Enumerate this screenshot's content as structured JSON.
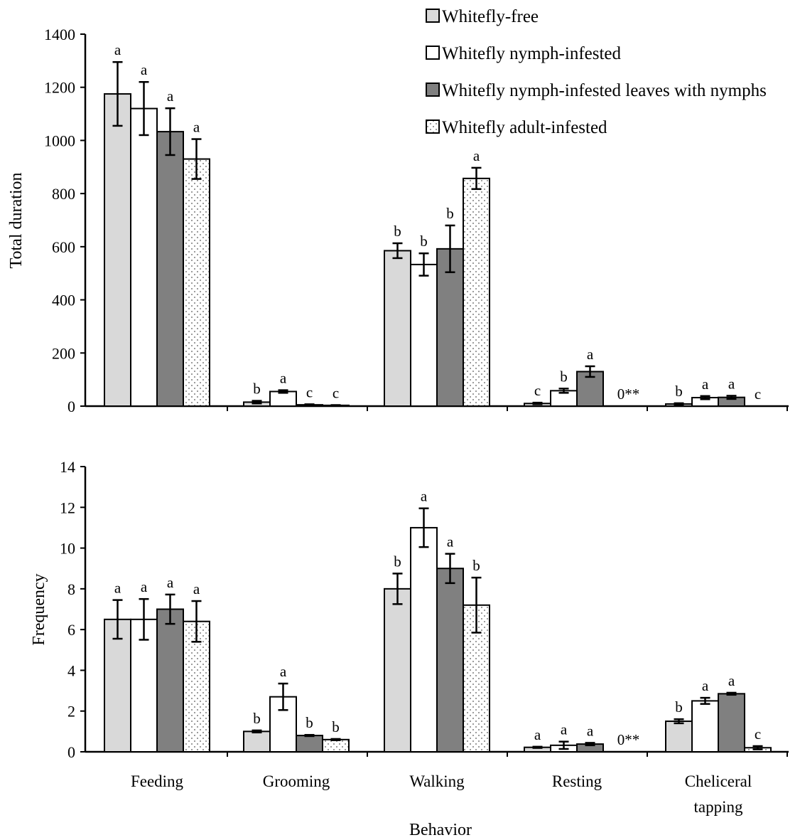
{
  "chart_data": [
    {
      "type": "bar",
      "ylabel": "Total duration",
      "ylim": [
        0,
        1400
      ],
      "yticks": [
        0,
        200,
        400,
        600,
        800,
        1000,
        1200,
        1400
      ],
      "categories": [
        "Feeding",
        "Grooming",
        "Walking",
        "Resting",
        "Cheliceral tapping"
      ],
      "series": [
        {
          "name": "Whitefly-free",
          "values": [
            1175,
            15,
            585,
            10,
            8
          ],
          "errors": [
            120,
            5,
            28,
            3,
            3
          ],
          "letters": [
            "a",
            "b",
            "b",
            "c",
            "b"
          ]
        },
        {
          "name": "Whitefly nymph-infested",
          "values": [
            1120,
            55,
            533,
            58,
            32
          ],
          "errors": [
            100,
            5,
            42,
            8,
            6
          ],
          "letters": [
            "a",
            "a",
            "b",
            "b",
            "a"
          ]
        },
        {
          "name": "Whitefly nymph-infested leaves with nymphs",
          "values": [
            1033,
            5,
            592,
            130,
            33
          ],
          "errors": [
            88,
            2,
            88,
            20,
            6
          ],
          "letters": [
            "a",
            "c",
            "b",
            "a",
            "a"
          ]
        },
        {
          "name": "Whitefly adult-infested",
          "values": [
            930,
            3,
            857,
            0,
            0
          ],
          "errors": [
            75,
            1,
            40,
            0,
            0
          ],
          "letters": [
            "a",
            "c",
            "a",
            "0**",
            "c"
          ]
        }
      ],
      "legend_position": "top-right"
    },
    {
      "type": "bar",
      "ylabel": "Frequency",
      "xlabel": "Behavior",
      "ylim": [
        0,
        14
      ],
      "yticks": [
        0,
        2,
        4,
        6,
        8,
        10,
        12,
        14
      ],
      "categories": [
        "Feeding",
        "Grooming",
        "Walking",
        "Resting",
        "Cheliceral tapping"
      ],
      "series": [
        {
          "name": "Whitefly-free",
          "values": [
            6.5,
            1.0,
            8.0,
            0.22,
            1.5
          ],
          "errors": [
            0.95,
            0.05,
            0.75,
            0.03,
            0.1
          ],
          "letters": [
            "a",
            "b",
            "b",
            "a",
            "b"
          ]
        },
        {
          "name": "Whitefly nymph-infested",
          "values": [
            6.5,
            2.7,
            11.0,
            0.32,
            2.5
          ],
          "errors": [
            1.0,
            0.65,
            0.95,
            0.18,
            0.15
          ],
          "letters": [
            "a",
            "a",
            "a",
            "a",
            "a"
          ]
        },
        {
          "name": "Whitefly nymph-infested leaves with nymphs",
          "values": [
            7.0,
            0.8,
            9.0,
            0.38,
            2.85
          ],
          "errors": [
            0.72,
            0.03,
            0.72,
            0.06,
            0.05
          ],
          "letters": [
            "a",
            "b",
            "a",
            "a",
            "a"
          ]
        },
        {
          "name": "Whitefly adult-infested",
          "values": [
            6.4,
            0.6,
            7.2,
            0,
            0.2
          ],
          "errors": [
            1.0,
            0.03,
            1.35,
            0,
            0.08
          ],
          "letters": [
            "a",
            "b",
            "b",
            "0**",
            "c"
          ]
        }
      ]
    }
  ],
  "category_labels": [
    "Feeding",
    "Grooming",
    "Walking",
    "Resting",
    [
      "Cheliceral",
      "tapping"
    ]
  ],
  "series_fills": [
    "#d9d9d9",
    "#ffffff",
    "#808080",
    "dots"
  ]
}
